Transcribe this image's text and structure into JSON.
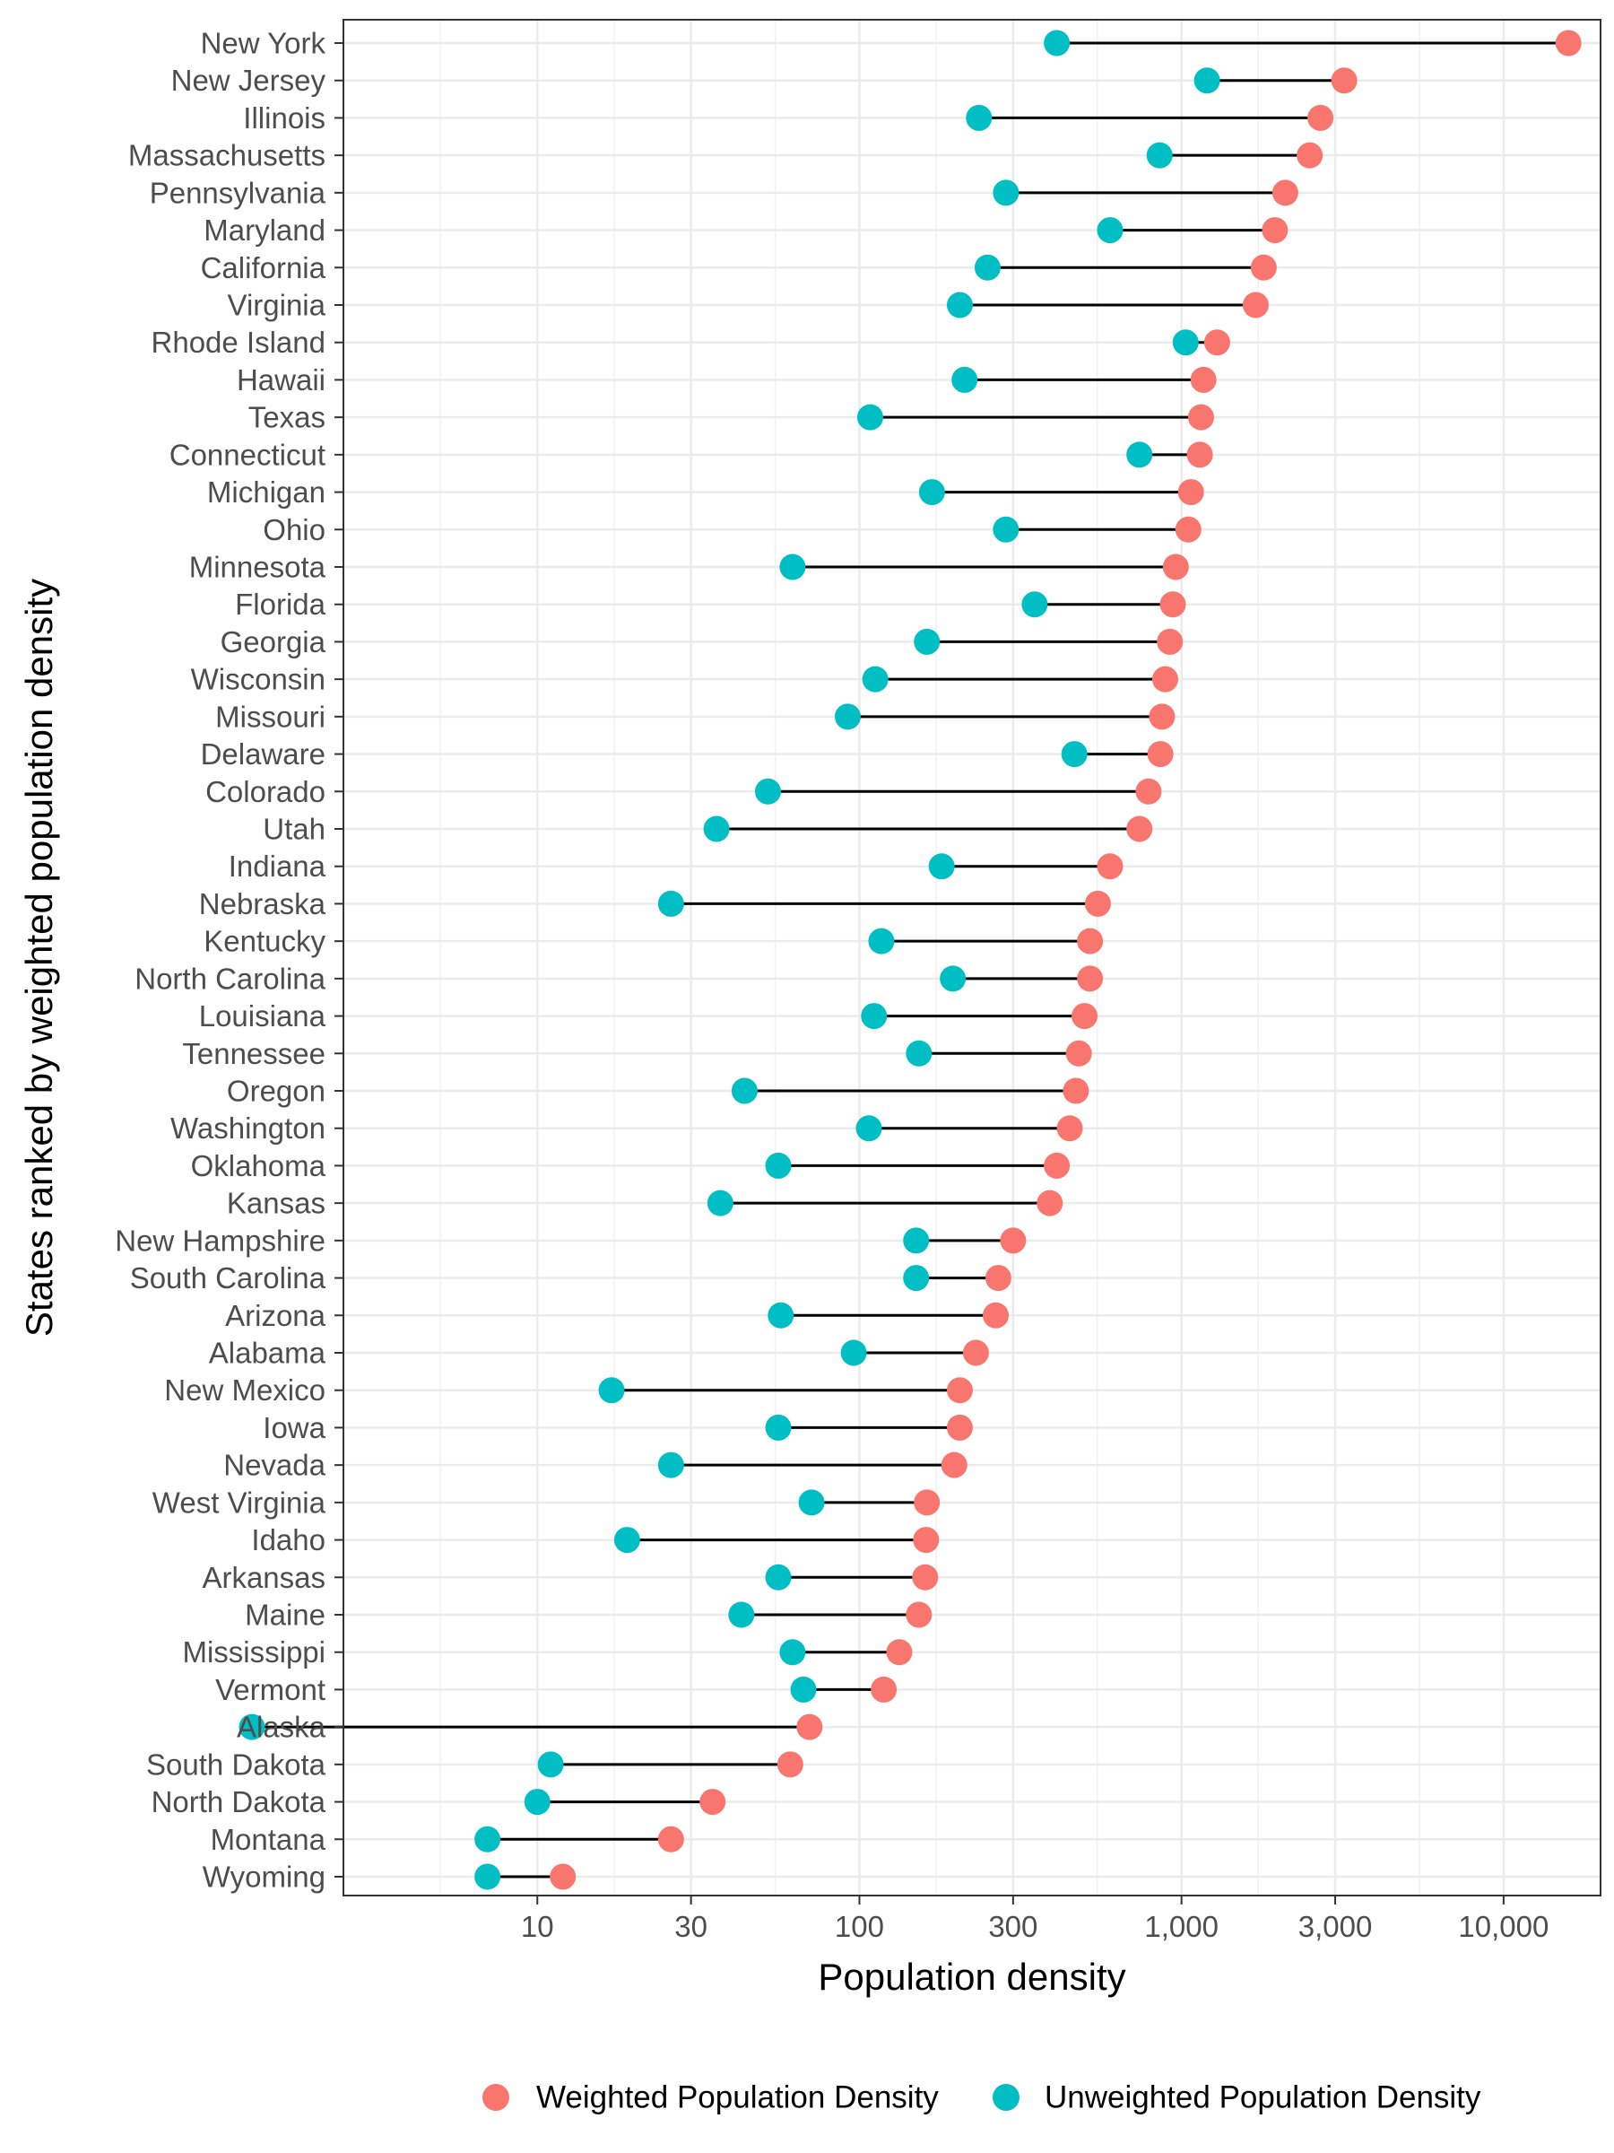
{
  "chart_data": {
    "type": "dumbbell",
    "title": "",
    "xlabel": "Population density",
    "ylabel": "States ranked by weighted population density",
    "x_scale": "log10",
    "xlim": [
      2.5,
      20000
    ],
    "x_ticks": [
      10,
      30,
      100,
      300,
      1000,
      3000,
      10000
    ],
    "x_tick_labels": [
      "10",
      "30",
      "100",
      "300",
      "1,000",
      "3,000",
      "10,000"
    ],
    "grid": true,
    "legend_position": "bottom",
    "series": [
      {
        "name": "Weighted Population Density",
        "color": "#F8766D"
      },
      {
        "name": "Unweighted Population Density",
        "color": "#00BFC4"
      }
    ],
    "states": [
      "New York",
      "New Jersey",
      "Illinois",
      "Massachusetts",
      "Pennsylvania",
      "Maryland",
      "California",
      "Virginia",
      "Rhode Island",
      "Hawaii",
      "Texas",
      "Connecticut",
      "Michigan",
      "Ohio",
      "Minnesota",
      "Florida",
      "Georgia",
      "Wisconsin",
      "Missouri",
      "Delaware",
      "Colorado",
      "Utah",
      "Indiana",
      "Nebraska",
      "Kentucky",
      "North Carolina",
      "Louisiana",
      "Tennessee",
      "Oregon",
      "Washington",
      "Oklahoma",
      "Kansas",
      "New Hampshire",
      "South Carolina",
      "Arizona",
      "Alabama",
      "New Mexico",
      "Iowa",
      "Nevada",
      "West Virginia",
      "Idaho",
      "Arkansas",
      "Maine",
      "Mississippi",
      "Vermont",
      "Alaska",
      "South Dakota",
      "North Dakota",
      "Montana",
      "Wyoming"
    ],
    "weighted": [
      15900,
      3200,
      2700,
      2500,
      2100,
      1950,
      1800,
      1700,
      1290,
      1170,
      1150,
      1140,
      1070,
      1050,
      960,
      940,
      920,
      890,
      870,
      860,
      790,
      740,
      600,
      550,
      520,
      520,
      500,
      480,
      470,
      450,
      410,
      390,
      300,
      270,
      265,
      230,
      205,
      205,
      197,
      162,
      161,
      160,
      153,
      133,
      119,
      70,
      61,
      35,
      26,
      12
    ],
    "unweighted": [
      410,
      1200,
      235,
      855,
      285,
      600,
      250,
      205,
      1030,
      212,
      108,
      740,
      168,
      285,
      62,
      350,
      162,
      112,
      92,
      465,
      52,
      36,
      180,
      26,
      117,
      195,
      111,
      153,
      44,
      107,
      56,
      37,
      150,
      150,
      57,
      96,
      17,
      56,
      26,
      71,
      19,
      56,
      43,
      62,
      67,
      1.3,
      11,
      10,
      7,
      7
    ]
  }
}
